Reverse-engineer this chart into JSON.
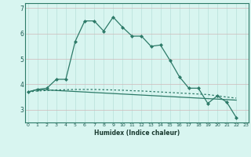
{
  "xlabel": "Humidex (Indice chaleur)",
  "x_values": [
    0,
    1,
    2,
    3,
    4,
    5,
    6,
    7,
    8,
    9,
    10,
    11,
    12,
    13,
    14,
    15,
    16,
    17,
    18,
    19,
    20,
    21,
    22,
    23
  ],
  "line1_y": [
    3.7,
    3.8,
    3.85,
    4.2,
    4.2,
    5.7,
    6.5,
    6.5,
    6.1,
    6.65,
    6.25,
    5.9,
    5.9,
    5.5,
    5.55,
    4.95,
    4.3,
    3.85,
    3.85,
    3.25,
    3.55,
    3.3,
    2.7,
    null
  ],
  "line2_y": [
    3.7,
    3.8,
    3.78,
    3.76,
    3.74,
    3.72,
    3.7,
    3.68,
    3.66,
    3.64,
    3.62,
    3.6,
    3.58,
    3.56,
    3.54,
    3.52,
    3.5,
    3.48,
    3.46,
    3.44,
    3.42,
    3.4,
    3.38,
    null
  ],
  "line3_y": [
    3.7,
    3.74,
    3.76,
    3.78,
    3.79,
    3.8,
    3.8,
    3.8,
    3.79,
    3.78,
    3.77,
    3.75,
    3.74,
    3.72,
    3.7,
    3.68,
    3.66,
    3.64,
    3.62,
    3.6,
    3.55,
    3.5,
    3.46,
    null
  ],
  "color": "#2d7a68",
  "bg_color": "#d8f5f0",
  "grid_color": "#b8e0da",
  "ylim": [
    2.5,
    7.2
  ],
  "yticks": [
    3,
    4,
    5,
    6,
    7
  ],
  "xticks": [
    0,
    1,
    2,
    3,
    4,
    5,
    6,
    7,
    8,
    9,
    10,
    11,
    12,
    13,
    14,
    15,
    16,
    17,
    18,
    19,
    20,
    21,
    22,
    23
  ]
}
